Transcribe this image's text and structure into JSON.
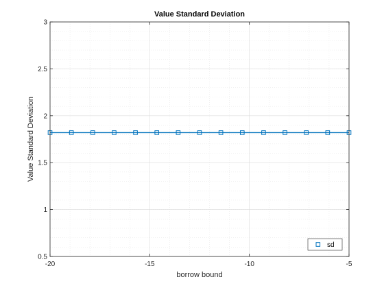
{
  "chart_data": {
    "type": "line",
    "title": "Value Standard Deviation",
    "xlabel": "borrow bound",
    "ylabel": "Value Standard Deviation",
    "xlim": [
      -20,
      -5
    ],
    "ylim": [
      0.5,
      3
    ],
    "xticks": [
      -20,
      -15,
      -10,
      -5
    ],
    "yticks": [
      0.5,
      1,
      1.5,
      2,
      2.5,
      3
    ],
    "grid": true,
    "minor_grid": true,
    "legend_position": "bottom-right",
    "series": [
      {
        "name": "sd",
        "marker": "square",
        "color": "#0072BD",
        "x": [
          -20,
          -18.9286,
          -17.8571,
          -16.7857,
          -15.7143,
          -14.6429,
          -13.5714,
          -12.5,
          -11.4286,
          -10.3571,
          -9.2857,
          -8.2143,
          -7.1429,
          -6.0714,
          -5
        ],
        "y": [
          1.82,
          1.82,
          1.82,
          1.82,
          1.82,
          1.82,
          1.82,
          1.82,
          1.82,
          1.82,
          1.82,
          1.82,
          1.82,
          1.82,
          1.82
        ]
      }
    ]
  }
}
